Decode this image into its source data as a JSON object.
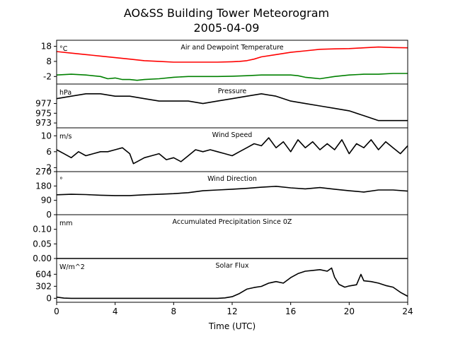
{
  "chart_data": {
    "type": "line",
    "title": "AO&SS Building Tower Meteorogram",
    "subtitle": "2005-04-09",
    "xlabel": "Time (UTC)",
    "xlim": [
      0,
      24
    ],
    "xticks": [
      0,
      4,
      8,
      12,
      16,
      20,
      24
    ],
    "panels": [
      {
        "name": "Air and Dewpoint Temperature",
        "unit": "°C",
        "ylim": [
          -7,
          22
        ],
        "yticks": [
          -2,
          8,
          18
        ],
        "series": [
          {
            "color": "#ff0000",
            "x": [
              0,
              1,
              2,
              3,
              4,
              5,
              6,
              7,
              8,
              9,
              10,
              11,
              12,
              12.5,
              13,
              13.5,
              14,
              15,
              16,
              17,
              18,
              19,
              20,
              21,
              22,
              23,
              24
            ],
            "y": [
              14.5,
              13.5,
              12.5,
              11.5,
              10.5,
              9.5,
              8.5,
              8,
              7.5,
              7.5,
              7.5,
              7.5,
              7.8,
              8,
              8.5,
              9.5,
              11,
              12.5,
              14,
              15,
              16,
              16.3,
              16.5,
              17,
              17.5,
              17.2,
              17
            ]
          },
          {
            "color": "#008000",
            "x": [
              0,
              1,
              2,
              3,
              3.5,
              4,
              4.5,
              5,
              5.5,
              6,
              7,
              8,
              9,
              10,
              11,
              12,
              13,
              14,
              15,
              16,
              16.5,
              17,
              17.5,
              18,
              19,
              20,
              21,
              22,
              23,
              24
            ],
            "y": [
              -1,
              -0.5,
              -1,
              -2,
              -3.5,
              -3,
              -4,
              -4,
              -4.5,
              -4,
              -3.5,
              -2.5,
              -2,
              -2,
              -2,
              -1.8,
              -1.5,
              -1,
              -1,
              -1,
              -1.5,
              -2.5,
              -3,
              -3.5,
              -2,
              -1,
              -0.5,
              -0.5,
              0,
              0
            ]
          }
        ]
      },
      {
        "name": "Pressure",
        "unit": "hPa",
        "ylim": [
          972,
          981
        ],
        "yticks": [
          973,
          975,
          977
        ],
        "series": [
          {
            "color": "#000000",
            "x": [
              0,
              1,
              2,
              3,
              4,
              5,
              6,
              7,
              8,
              9,
              10,
              11,
              12,
              13,
              14,
              15,
              16,
              17,
              18,
              19,
              20,
              21,
              22,
              23,
              24
            ],
            "y": [
              978,
              978.5,
              979,
              979,
              978.5,
              978.5,
              978,
              977.5,
              977.5,
              977.5,
              977,
              977.5,
              978,
              978.5,
              979,
              978.5,
              977.5,
              977,
              976.5,
              976,
              975.5,
              974.5,
              973.5,
              973.5,
              973.5
            ]
          }
        ]
      },
      {
        "name": "Wind Speed",
        "unit": "m/s",
        "ylim": [
          1,
          12
        ],
        "yticks": [
          2,
          6,
          10
        ],
        "series": [
          {
            "color": "#000000",
            "x": [
              0,
              0.5,
              1,
              1.5,
              2,
              2.5,
              3,
              3.5,
              4,
              4.5,
              5,
              5.25,
              5.5,
              6,
              6.5,
              7,
              7.5,
              8,
              8.5,
              9,
              9.5,
              10,
              10.5,
              11,
              11.5,
              12,
              12.5,
              13,
              13.5,
              14,
              14.5,
              15,
              15.5,
              16,
              16.5,
              17,
              17.5,
              18,
              18.5,
              19,
              19.5,
              20,
              20.5,
              21,
              21.5,
              22,
              22.5,
              23,
              23.5,
              24
            ],
            "y": [
              6.5,
              5.5,
              4.5,
              6,
              5,
              5.5,
              6,
              6,
              6.5,
              7,
              5.5,
              3,
              3.5,
              4.5,
              5,
              5.5,
              4,
              4.5,
              3.5,
              5,
              6.5,
              6,
              6.5,
              6,
              5.5,
              5,
              6,
              7,
              8,
              7.5,
              9.5,
              7,
              8.5,
              6,
              9,
              7,
              8.5,
              6.5,
              8,
              6.5,
              9,
              5.5,
              8,
              7,
              9,
              6.5,
              8.5,
              7,
              5.5,
              7.5
            ]
          }
        ]
      },
      {
        "name": "Wind Direction",
        "unit": "°",
        "ylim": [
          0,
          270
        ],
        "yticks": [
          0,
          90,
          180,
          270
        ],
        "series": [
          {
            "color": "#000000",
            "x": [
              0,
              1,
              2,
              3,
              4,
              5,
              6,
              7,
              8,
              9,
              10,
              11,
              12,
              13,
              14,
              15,
              16,
              17,
              18,
              19,
              20,
              21,
              22,
              23,
              24
            ],
            "y": [
              125,
              128,
              126,
              122,
              120,
              120,
              125,
              128,
              132,
              138,
              150,
              155,
              160,
              165,
              172,
              178,
              168,
              162,
              170,
              160,
              150,
              142,
              155,
              155,
              148
            ]
          }
        ]
      },
      {
        "name": "Accumulated Precipitation Since 0Z",
        "unit": "mm",
        "ylim": [
          0,
          0.15
        ],
        "yticks": [
          0.0,
          0.05,
          0.1
        ],
        "ytick_labels": [
          "0.00",
          "0.05",
          "0.10"
        ],
        "series": [
          {
            "color": "#000000",
            "x": [
              0,
              24
            ],
            "y": [
              0,
              0
            ]
          }
        ]
      },
      {
        "name": "Solar Flux",
        "unit": "W/m^2",
        "ylim": [
          -100,
          1000
        ],
        "yticks": [
          0,
          302,
          604
        ],
        "series": [
          {
            "color": "#000000",
            "x": [
              0,
              0.5,
              1,
              2,
              4,
              6,
              8,
              10,
              11,
              11.5,
              12,
              12.5,
              13,
              13.5,
              14,
              14.5,
              15,
              15.5,
              16,
              16.5,
              17,
              17.5,
              18,
              18.5,
              18.8,
              19,
              19.3,
              19.7,
              20,
              20.5,
              20.8,
              21,
              21.5,
              22,
              22.5,
              23,
              23.5,
              24
            ],
            "y": [
              30,
              5,
              0,
              0,
              0,
              0,
              0,
              0,
              0,
              10,
              40,
              120,
              230,
              270,
              300,
              380,
              420,
              380,
              520,
              620,
              680,
              700,
              720,
              680,
              760,
              530,
              350,
              280,
              310,
              340,
              600,
              440,
              420,
              380,
              320,
              280,
              150,
              50
            ]
          }
        ]
      }
    ]
  }
}
